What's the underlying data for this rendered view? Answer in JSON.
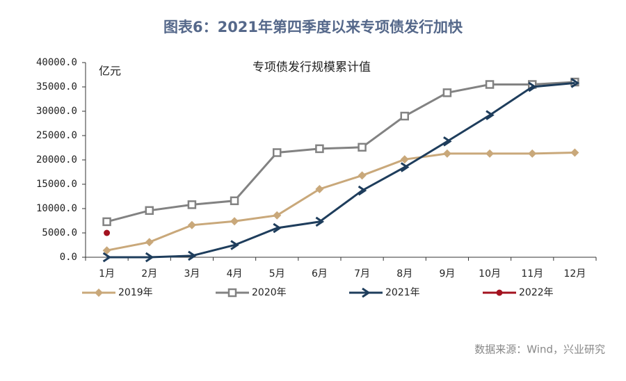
{
  "chart_data": {
    "type": "line",
    "title": "图表6：2021年第四季度以来专项债发行加快",
    "subtitle": "专项债发行规模累计值",
    "y_label": "亿元",
    "source": "数据来源：Wind，兴业研究",
    "categories": [
      "1月",
      "2月",
      "3月",
      "4月",
      "5月",
      "6月",
      "7月",
      "8月",
      "9月",
      "10月",
      "11月",
      "12月"
    ],
    "series": [
      {
        "name": "2019年",
        "color": "#c9a87a",
        "marker": "diamond",
        "values": [
          1400,
          3100,
          6600,
          7400,
          8600,
          14000,
          16800,
          20100,
          21300,
          21300,
          21300,
          21500
        ]
      },
      {
        "name": "2020年",
        "color": "#828282",
        "marker": "square",
        "values": [
          7300,
          9600,
          10800,
          11600,
          21500,
          22300,
          22600,
          29000,
          33800,
          35500,
          35500,
          36000
        ]
      },
      {
        "name": "2021年",
        "color": "#1e3d5c",
        "marker": "chevron",
        "values": [
          0,
          0,
          300,
          2500,
          6000,
          7300,
          13700,
          18500,
          23800,
          29200,
          35000,
          35800
        ]
      },
      {
        "name": "2022年",
        "color": "#a3121f",
        "marker": "circle",
        "values": [
          5000,
          null,
          null,
          null,
          null,
          null,
          null,
          null,
          null,
          null,
          null,
          null
        ]
      }
    ],
    "ylim": [
      0,
      40000
    ],
    "yticks": [
      {
        "value": 0,
        "label": "0.0"
      },
      {
        "value": 5000,
        "label": "5000.0"
      },
      {
        "value": 10000,
        "label": "10000.0"
      },
      {
        "value": 15000,
        "label": "15000.0"
      },
      {
        "value": 20000,
        "label": "20000.0"
      },
      {
        "value": 25000,
        "label": "25000.0"
      },
      {
        "value": 30000,
        "label": "30000.0"
      },
      {
        "value": 35000,
        "label": "35000.0"
      },
      {
        "value": 40000,
        "label": "40000.0"
      }
    ],
    "legend": "bottom"
  }
}
